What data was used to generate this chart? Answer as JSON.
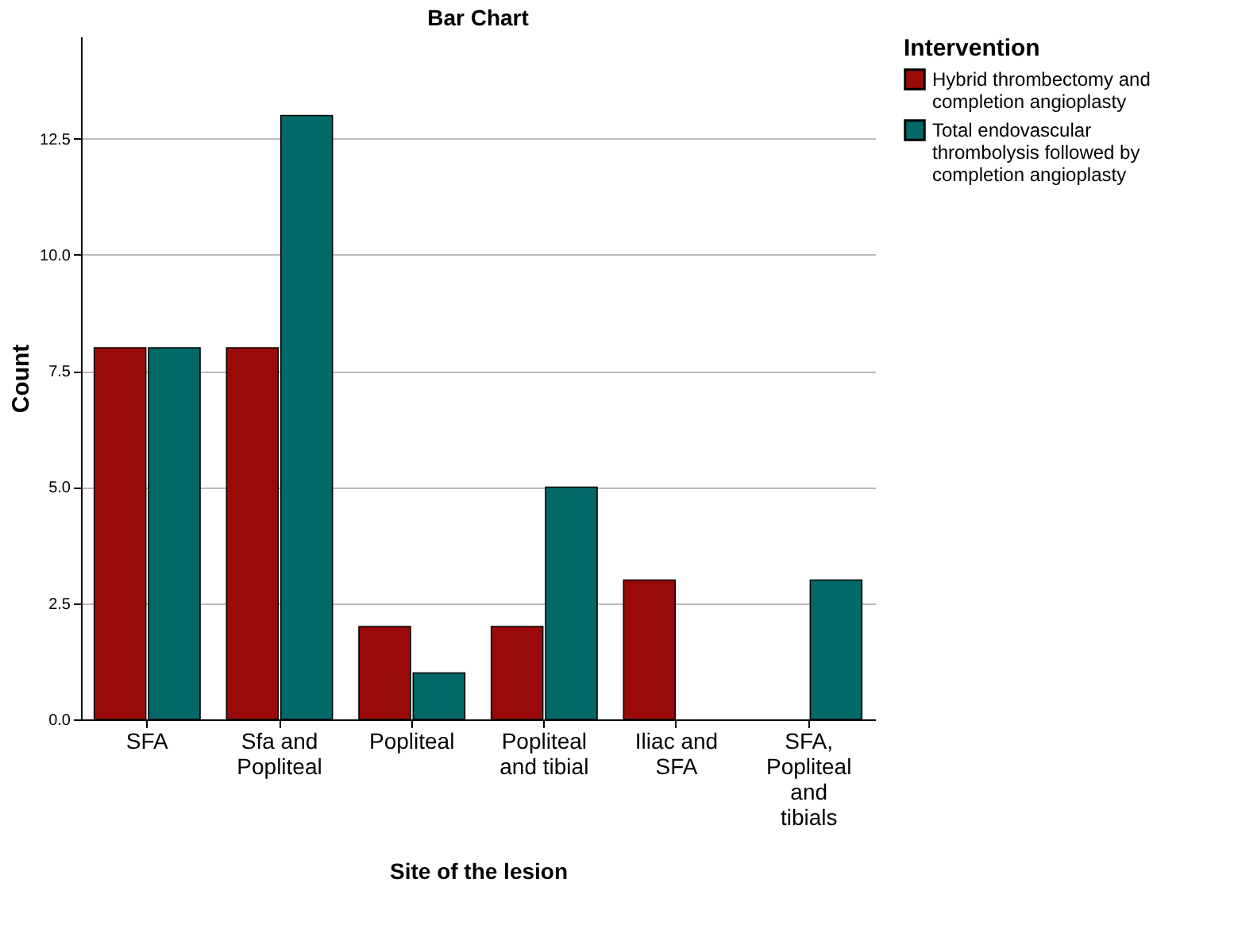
{
  "chart_data": {
    "type": "bar",
    "title": "Bar Chart",
    "xlabel": "Site of the lesion",
    "ylabel": "Count",
    "legend_title": "Intervention",
    "categories": [
      "SFA",
      "Sfa and Popliteal",
      "Popliteal",
      "Popliteal and tibial",
      "Iliac and SFA",
      "SFA, Popliteal and tibials"
    ],
    "series": [
      {
        "name": "Hybrid thrombectomy and completion angioplasty",
        "color": "#9b0a0a",
        "values": [
          8,
          8,
          2,
          2,
          3,
          null
        ]
      },
      {
        "name": "Total endovascular thrombolysis followed by completion angioplasty",
        "color": "#036868",
        "values": [
          8,
          13,
          1,
          5,
          null,
          3
        ]
      }
    ],
    "ylim": [
      0,
      14.7
    ],
    "yticks": [
      {
        "value": 0,
        "label": "0.0"
      },
      {
        "value": 2.5,
        "label": "2.5"
      },
      {
        "value": 5,
        "label": "5.0"
      },
      {
        "value": 7.5,
        "label": "7.5"
      },
      {
        "value": 10,
        "label": "10.0"
      },
      {
        "value": 12.5,
        "label": "12.5"
      }
    ],
    "grid": "y",
    "legend": "top right"
  }
}
